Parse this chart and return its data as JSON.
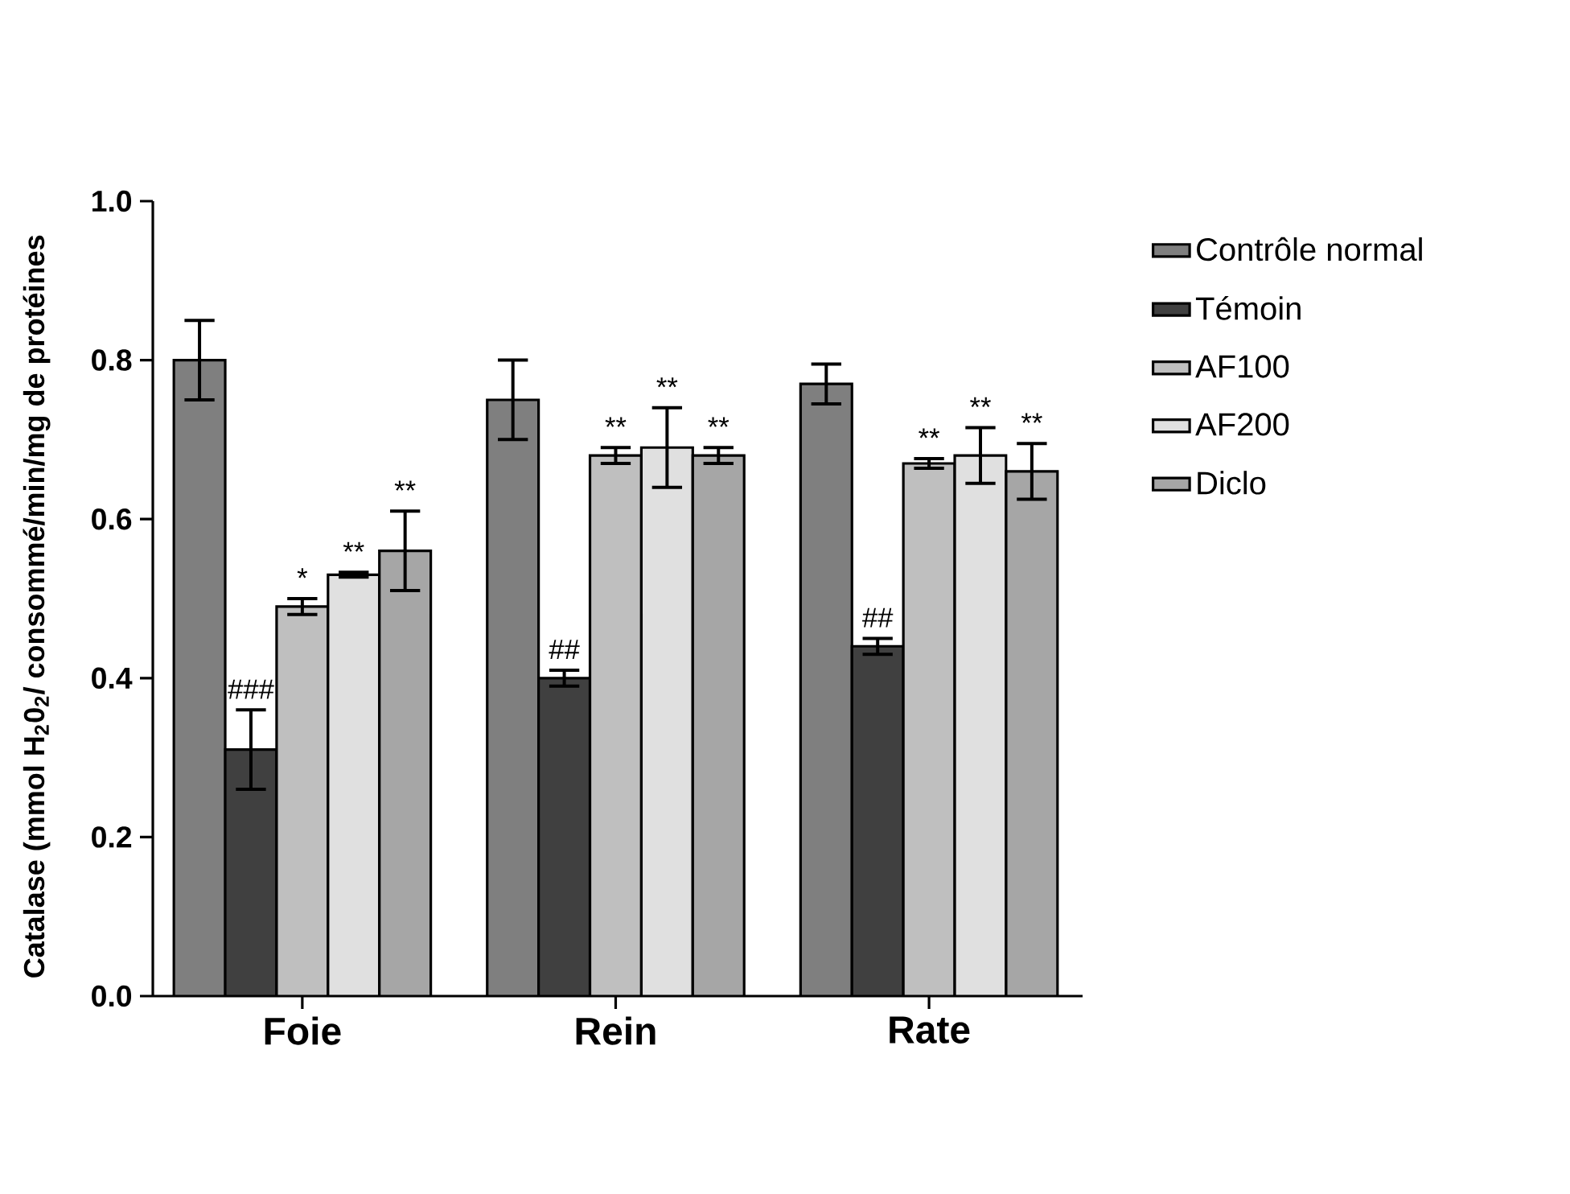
{
  "chart_data": {
    "type": "bar",
    "ylabel": "Catalase (mmol H$_{2}$0$_{2}$/ consommé/min/mg de protéines",
    "categories": [
      "Foie",
      "Rein",
      "Rate"
    ],
    "series": [
      {
        "name": "Contrôle normal",
        "color": "#7f7f7f",
        "values": [
          0.8,
          0.75,
          0.77
        ],
        "errors": [
          0.05,
          0.05,
          0.025
        ],
        "value_labels": [
          null,
          null,
          null
        ]
      },
      {
        "name": "Témoin",
        "color": "#404040",
        "values": [
          0.31,
          0.4,
          0.44
        ],
        "errors": [
          0.05,
          0.01,
          0.01
        ],
        "value_labels": [
          "###",
          "##",
          "##"
        ]
      },
      {
        "name": "AF100",
        "color": "#bfbfbf",
        "values": [
          0.49,
          0.68,
          0.67
        ],
        "errors": [
          0.01,
          0.01,
          0.006
        ],
        "value_labels": [
          "*",
          "**",
          "**"
        ]
      },
      {
        "name": "AF200",
        "color": "#e0e0e0",
        "values": [
          0.53,
          0.69,
          0.68
        ],
        "errors": [
          0.003,
          0.05,
          0.035
        ],
        "value_labels": [
          "**",
          "**",
          "**"
        ]
      },
      {
        "name": "Diclo",
        "color": "#a6a6a6",
        "values": [
          0.56,
          0.68,
          0.66
        ],
        "errors": [
          0.05,
          0.01,
          0.035
        ],
        "value_labels": [
          "**",
          "**",
          "**"
        ]
      }
    ],
    "ylim": [
      0,
      1.0
    ],
    "yticks": [
      {
        "value": 0,
        "label": "0.0"
      },
      {
        "value": 0.2,
        "label": "0.2"
      },
      {
        "value": 0.4,
        "label": "0.4"
      },
      {
        "value": 0.6,
        "label": "0.6"
      },
      {
        "value": 0.8,
        "label": "0.8"
      },
      {
        "value": 1.0,
        "label": "1.0"
      }
    ],
    "legend": "right"
  }
}
